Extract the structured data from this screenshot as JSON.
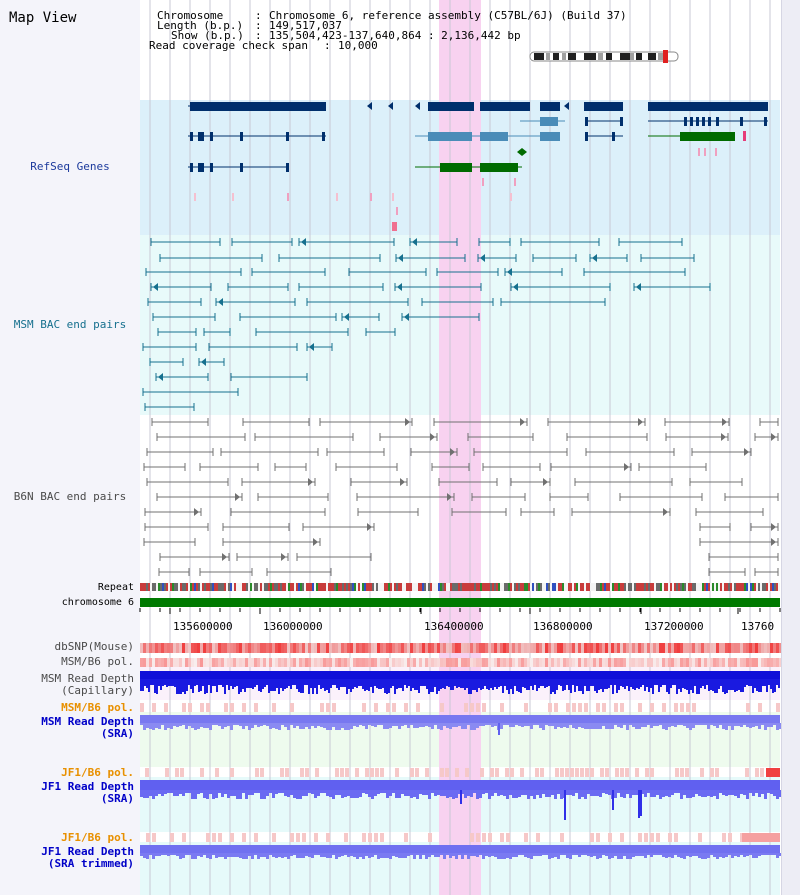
{
  "title": "Map View",
  "info": {
    "chromosome_label": "Chromosome",
    "chromosome_value": "Chromosome 6, reference assembly (C57BL/6J) (Build 37)",
    "length_label": "Length (b.p.)",
    "length_value": "149,517,037",
    "show_label": "Show (b.p.)",
    "show_value": "135,504,423-137,640,864 : 2,136,442 bp",
    "coverage_label": "Read coverage check span",
    "coverage_value": "10,000"
  },
  "tracks": {
    "refseq": "RefSeq Genes",
    "msm_bac": "MSM BAC end pairs",
    "b6n_bac": "B6N BAC end pairs",
    "repeat": "Repeat",
    "chromosome": "chromosome 6",
    "dbsnp": "dbSNP(Mouse)",
    "msm_b6_pol": "MSM/B6 pol.",
    "msm_depth_cap_1": "MSM Read Depth",
    "msm_depth_cap_2": "(Capillary)",
    "msm_b6_pol2": "MSM/B6 pol.",
    "msm_depth_sra_1": "MSM Read Depth",
    "msm_depth_sra_2": "(SRA)",
    "jf1_b6_pol": "JF1/B6 pol.",
    "jf1_depth_sra_1": "JF1 Read Depth",
    "jf1_depth_sra_2": "(SRA)",
    "jf1_b6_pol2": "JF1/B6 pol.",
    "jf1_depth_trim_1": "JF1 Read Depth",
    "jf1_depth_trim_2": "(SRA trimmed)"
  },
  "axis": {
    "ticks": [
      "135600000",
      "136000000",
      "136400000",
      "136800000",
      "137200000",
      "13760"
    ]
  },
  "colors": {
    "refseq_bg": "#dcf0fa",
    "bac_bg": "#e8fafa",
    "highlight": "#f8d2f0",
    "gene_dark": "#002f6c",
    "gene_mid": "#4a8cb8",
    "gene_green": "#006b00",
    "bac_teal": "#16708e",
    "bac_gray": "#707070",
    "chrom_green": "#007a00",
    "depth_blue": "#2020e8",
    "depth_light": "#7070f0",
    "pol_red": "#f03030",
    "label_navy": "#1c3a9c",
    "label_teal": "#16708e",
    "label_gray": "#4a4a4a",
    "label_orange": "#e89000",
    "label_blue": "#0000c8"
  }
}
